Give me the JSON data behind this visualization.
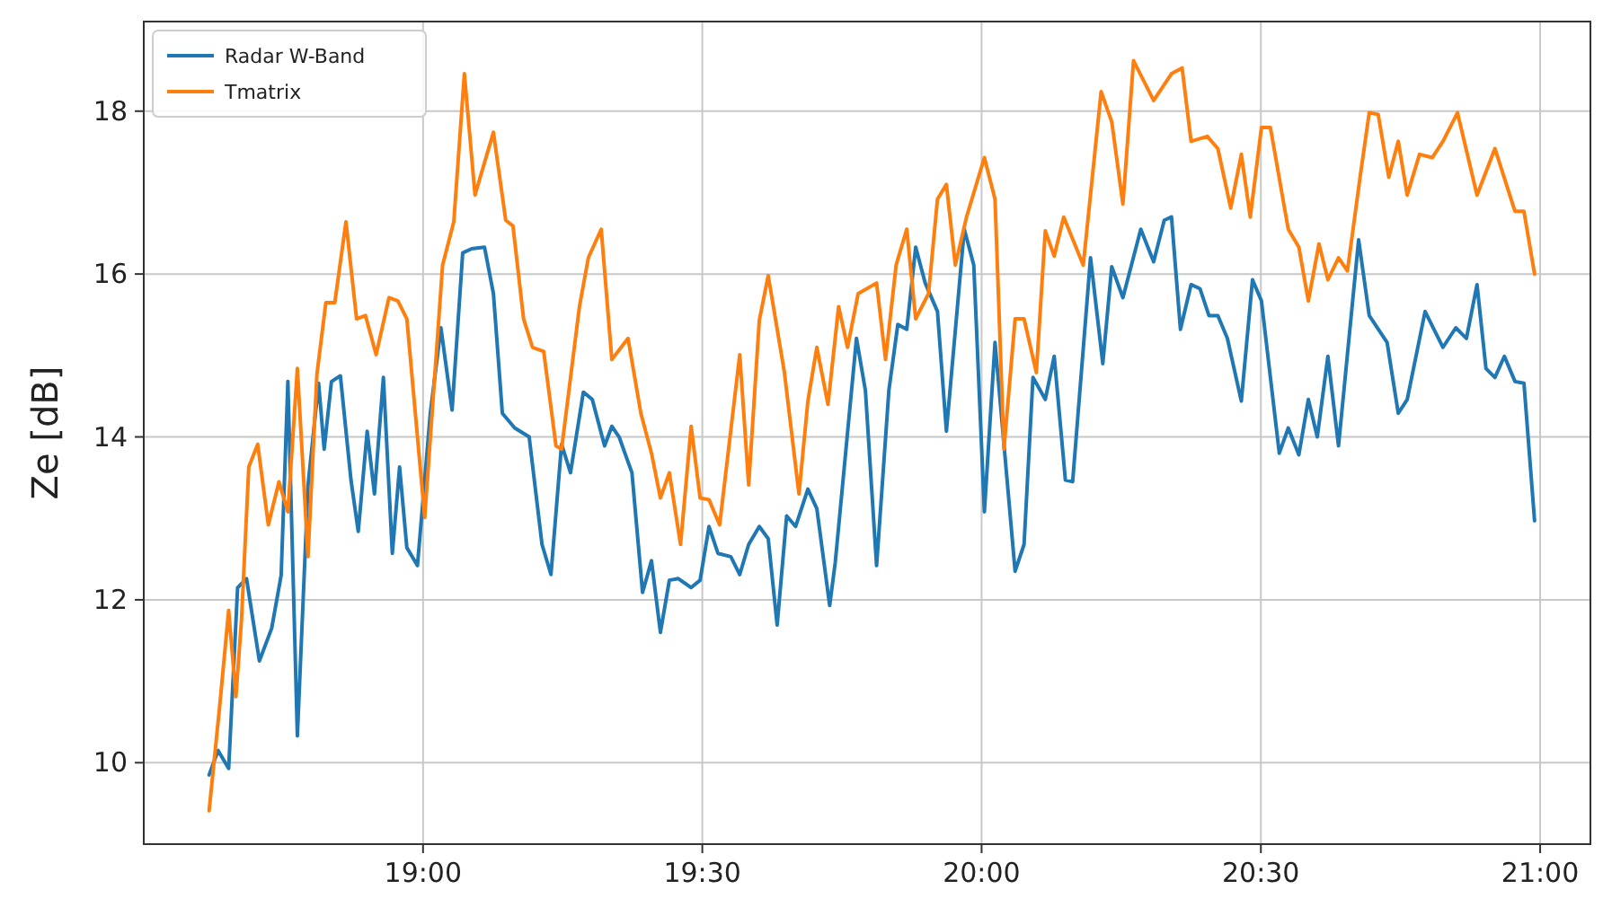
{
  "chart_data": {
    "type": "line",
    "ylabel": "Ze [dB]",
    "xlim": [
      18.5,
      21.09
    ],
    "ylim": [
      9.0,
      19.1
    ],
    "xticks": [
      {
        "value": 19,
        "label": "19:00"
      },
      {
        "value": 19.5,
        "label": "19:30"
      },
      {
        "value": 20,
        "label": "20:00"
      },
      {
        "value": 20.5,
        "label": "20:30"
      },
      {
        "value": 21,
        "label": "21:00"
      }
    ],
    "yticks": [
      10,
      12,
      14,
      16,
      18
    ],
    "grid": true,
    "legend": "top left",
    "line_style": "solid",
    "marker": "none",
    "series": [
      {
        "name": "Radar W-Band",
        "color": "#1f77b4",
        "x": [
          18.617,
          18.633,
          18.652,
          18.668,
          18.684,
          18.707,
          18.729,
          18.746,
          18.758,
          18.775,
          18.794,
          18.813,
          18.823,
          18.836,
          18.852,
          18.871,
          18.884,
          18.9,
          18.913,
          18.929,
          18.945,
          18.958,
          18.971,
          18.99,
          19.013,
          19.032,
          19.052,
          19.071,
          19.087,
          19.11,
          19.126,
          19.142,
          19.164,
          19.19,
          19.213,
          19.229,
          19.248,
          19.264,
          19.287,
          19.303,
          19.325,
          19.338,
          19.351,
          19.374,
          19.393,
          19.409,
          19.425,
          19.441,
          19.457,
          19.48,
          19.496,
          19.512,
          19.528,
          19.551,
          19.567,
          19.583,
          19.602,
          19.618,
          19.634,
          19.651,
          19.667,
          19.689,
          19.705,
          19.728,
          19.738,
          19.776,
          19.792,
          19.812,
          19.834,
          19.85,
          19.866,
          19.882,
          19.899,
          19.921,
          19.937,
          19.969,
          19.986,
          20.005,
          20.024,
          20.06,
          20.076,
          20.092,
          20.114,
          20.13,
          20.15,
          20.163,
          20.195,
          20.217,
          20.233,
          20.253,
          20.285,
          20.308,
          20.327,
          20.34,
          20.356,
          20.375,
          20.391,
          20.407,
          20.423,
          20.44,
          20.465,
          20.485,
          20.501,
          20.533,
          20.549,
          20.568,
          20.585,
          20.601,
          20.62,
          20.639,
          20.675,
          20.694,
          20.726,
          20.746,
          20.762,
          20.794,
          20.826,
          20.849,
          20.868,
          20.887,
          20.903,
          20.919,
          20.936,
          20.955,
          20.971,
          20.99
        ],
        "values": [
          9.85,
          10.15,
          9.93,
          12.15,
          12.26,
          11.25,
          11.65,
          12.3,
          14.68,
          10.33,
          13.4,
          14.66,
          13.85,
          14.68,
          14.75,
          13.47,
          12.84,
          14.07,
          13.3,
          14.73,
          12.57,
          13.63,
          12.64,
          12.42,
          14.29,
          15.34,
          14.33,
          16.26,
          16.31,
          16.33,
          15.76,
          14.29,
          14.11,
          14.0,
          12.68,
          12.31,
          13.91,
          13.56,
          14.55,
          14.46,
          13.89,
          14.13,
          14.0,
          13.56,
          12.09,
          12.48,
          11.6,
          12.24,
          12.26,
          12.15,
          12.24,
          12.9,
          12.57,
          12.53,
          12.31,
          12.68,
          12.9,
          12.75,
          11.69,
          13.03,
          12.9,
          13.36,
          13.12,
          11.93,
          12.46,
          15.21,
          14.57,
          12.42,
          14.57,
          15.38,
          15.32,
          16.33,
          15.89,
          15.54,
          14.07,
          16.55,
          16.11,
          13.08,
          15.16,
          12.35,
          12.68,
          14.73,
          14.46,
          14.99,
          13.47,
          13.45,
          16.2,
          14.9,
          16.09,
          15.71,
          16.55,
          16.15,
          16.66,
          16.7,
          15.32,
          15.87,
          15.82,
          15.49,
          15.49,
          15.21,
          14.44,
          15.93,
          15.67,
          13.8,
          14.11,
          13.78,
          14.46,
          14.0,
          14.99,
          13.89,
          16.42,
          15.49,
          15.16,
          14.29,
          14.46,
          15.54,
          15.1,
          15.34,
          15.21,
          15.87,
          14.84,
          14.73,
          14.99,
          14.68,
          14.66,
          12.97
        ]
      },
      {
        "name": "Tmatrix",
        "color": "#ff7f0e",
        "x": [
          18.617,
          18.636,
          18.652,
          18.665,
          18.675,
          18.688,
          18.704,
          18.723,
          18.742,
          18.758,
          18.775,
          18.794,
          18.81,
          18.826,
          18.842,
          18.862,
          18.881,
          18.897,
          18.916,
          18.939,
          18.955,
          18.971,
          19.003,
          19.035,
          19.055,
          19.074,
          19.093,
          19.126,
          19.148,
          19.161,
          19.18,
          19.196,
          19.216,
          19.238,
          19.248,
          19.28,
          19.296,
          19.319,
          19.338,
          19.367,
          19.39,
          19.409,
          19.425,
          19.441,
          19.461,
          19.48,
          19.496,
          19.512,
          19.531,
          19.567,
          19.583,
          19.602,
          19.618,
          19.647,
          19.673,
          19.689,
          19.705,
          19.725,
          19.744,
          19.76,
          19.779,
          19.812,
          19.828,
          19.847,
          19.866,
          19.882,
          19.905,
          19.921,
          19.937,
          19.953,
          19.973,
          20.005,
          20.024,
          20.04,
          20.06,
          20.076,
          20.098,
          20.114,
          20.13,
          20.147,
          20.182,
          20.214,
          20.233,
          20.253,
          20.272,
          20.308,
          20.34,
          20.359,
          20.375,
          20.404,
          20.423,
          20.446,
          20.465,
          20.481,
          20.501,
          20.517,
          20.549,
          20.568,
          20.585,
          20.604,
          20.62,
          20.639,
          20.655,
          20.678,
          20.694,
          20.71,
          20.729,
          20.746,
          20.762,
          20.784,
          20.807,
          20.826,
          20.852,
          20.887,
          20.919,
          20.955,
          20.971,
          20.99
        ],
        "values": [
          9.41,
          10.7,
          11.87,
          10.81,
          11.76,
          13.63,
          13.91,
          12.92,
          13.45,
          13.08,
          14.84,
          12.53,
          14.77,
          15.65,
          15.65,
          16.64,
          15.45,
          15.49,
          15.01,
          15.71,
          15.67,
          15.45,
          13.01,
          16.11,
          16.64,
          18.46,
          16.97,
          17.74,
          16.66,
          16.59,
          15.45,
          15.1,
          15.05,
          13.89,
          13.85,
          15.6,
          16.2,
          16.55,
          14.95,
          15.21,
          14.29,
          13.8,
          13.25,
          13.56,
          12.68,
          14.13,
          13.25,
          13.23,
          12.92,
          15.01,
          13.41,
          15.43,
          15.98,
          14.79,
          13.3,
          14.44,
          15.1,
          14.4,
          15.6,
          15.1,
          15.76,
          15.89,
          14.95,
          16.11,
          16.55,
          15.45,
          15.76,
          16.92,
          17.1,
          16.11,
          16.7,
          17.43,
          16.92,
          13.85,
          15.45,
          15.45,
          14.79,
          16.53,
          16.22,
          16.7,
          16.11,
          18.24,
          17.87,
          16.86,
          18.62,
          18.13,
          18.46,
          18.53,
          17.63,
          17.69,
          17.54,
          16.81,
          17.47,
          16.7,
          17.8,
          17.8,
          16.55,
          16.33,
          15.67,
          16.37,
          15.93,
          16.2,
          16.04,
          17.21,
          17.98,
          17.96,
          17.19,
          17.63,
          16.97,
          17.47,
          17.43,
          17.63,
          17.98,
          16.97,
          17.54,
          16.77,
          16.77,
          16.0
        ]
      }
    ]
  }
}
